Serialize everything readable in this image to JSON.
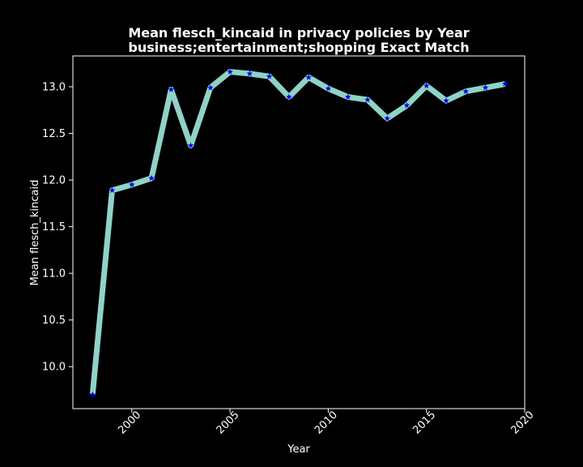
{
  "chart_data": {
    "type": "line",
    "title": "Mean flesch_kincaid in privacy policies by Year",
    "subtitle": "business;entertainment;shopping Exact Match",
    "xlabel": "Year",
    "ylabel": "Mean flesch_kincaid",
    "xlim": [
      1997,
      2020
    ],
    "ylim": [
      9.55,
      13.33
    ],
    "xticks": [
      2000,
      2005,
      2010,
      2015,
      2020
    ],
    "yticks": [
      10.0,
      10.5,
      11.0,
      11.5,
      12.0,
      12.5,
      13.0
    ],
    "grid": false,
    "line_color": "#8dd3c7",
    "marker_color": "#0000ff",
    "background_color": "#000000",
    "x": [
      1998,
      1999,
      2000,
      2001,
      2002,
      2003,
      2004,
      2005,
      2006,
      2007,
      2008,
      2009,
      2010,
      2011,
      2012,
      2013,
      2014,
      2015,
      2016,
      2017,
      2018,
      2019
    ],
    "y": [
      9.7,
      11.89,
      11.95,
      12.02,
      12.97,
      12.37,
      12.99,
      13.16,
      13.14,
      13.11,
      12.89,
      13.1,
      12.98,
      12.89,
      12.86,
      12.66,
      12.8,
      13.01,
      12.85,
      12.95,
      12.99,
      13.03
    ]
  }
}
